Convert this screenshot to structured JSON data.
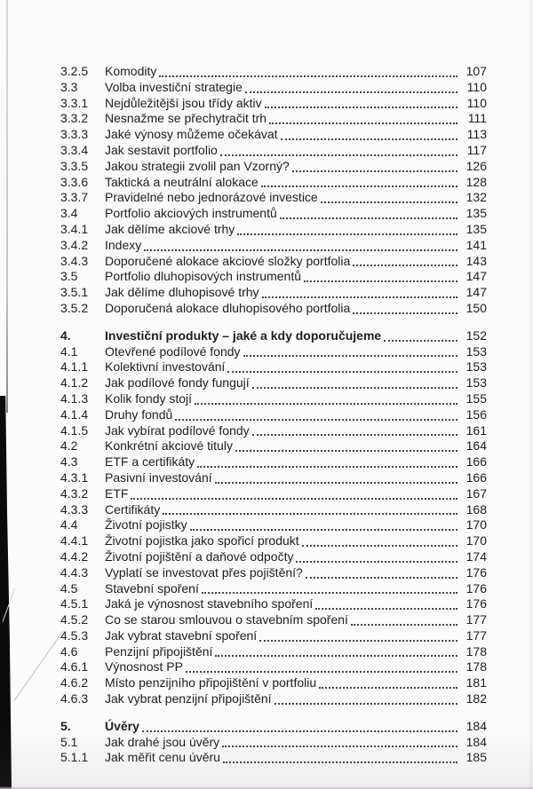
{
  "colors": {
    "ink": "#202020",
    "paper": "#fcfbfc",
    "scan_edge": "#0b0b0b"
  },
  "toc": {
    "entries": [
      {
        "num": "3.2.5",
        "title": "Komodity",
        "page": "107"
      },
      {
        "num": "3.3",
        "title": "Volba investiční strategie",
        "page": "110"
      },
      {
        "num": "3.3.1",
        "title": "Nejdůležitější jsou třídy aktiv",
        "page": "110"
      },
      {
        "num": "3.3.2",
        "title": "Nesnažme se přechytračit trh",
        "page": "111"
      },
      {
        "num": "3.3.3",
        "title": "Jaké výnosy můžeme očekávat",
        "page": "113"
      },
      {
        "num": "3.3.4",
        "title": "Jak sestavit portfolio",
        "page": "117"
      },
      {
        "num": "3.3.5",
        "title": "Jakou strategii zvolil pan Vzorný?",
        "page": "126"
      },
      {
        "num": "3.3.6",
        "title": "Taktická a neutrální alokace",
        "page": "128"
      },
      {
        "num": "3.3.7",
        "title": "Pravidelné nebo jednorázové investice",
        "page": "132"
      },
      {
        "num": "3.4",
        "title": "Portfolio akciových instrumentů",
        "page": "135"
      },
      {
        "num": "3.4.1",
        "title": "Jak dělíme akciové trhy",
        "page": "135"
      },
      {
        "num": "3.4.2",
        "title": "Indexy",
        "page": "141"
      },
      {
        "num": "3.4.3",
        "title": "Doporučené alokace akciové složky portfolia",
        "page": "143"
      },
      {
        "num": "3.5",
        "title": "Portfolio dluhopisových instrumentů",
        "page": "147"
      },
      {
        "num": "3.5.1",
        "title": "Jak dělíme dluhopisové trhy",
        "page": "147"
      },
      {
        "num": "3.5.2",
        "title": "Doporučená alokace dluhopisového portfolia",
        "page": "150"
      },
      {
        "num": "4.",
        "title": "Investiční produkty – jaké a kdy doporučujeme",
        "page": "152",
        "chapter": true,
        "section_break_before": true
      },
      {
        "num": "4.1",
        "title": "Otevřené podílové fondy",
        "page": "153"
      },
      {
        "num": "4.1.1",
        "title": "Kolektivní investování",
        "page": "153"
      },
      {
        "num": "4.1.2",
        "title": "Jak podílové fondy fungují",
        "page": "153"
      },
      {
        "num": "4.1.3",
        "title": "Kolik fondy stojí",
        "page": "155"
      },
      {
        "num": "4.1.4",
        "title": "Druhy fondů",
        "page": "156"
      },
      {
        "num": "4.1.5",
        "title": "Jak vybírat podílové fondy",
        "page": "161"
      },
      {
        "num": "4.2",
        "title": "Konkrétní akciové tituly",
        "page": "164"
      },
      {
        "num": "4.3",
        "title": "ETF a certifikáty",
        "page": "166"
      },
      {
        "num": "4.3.1",
        "title": "Pasivní investování",
        "page": "166"
      },
      {
        "num": "4.3.2",
        "title": "ETF",
        "page": "167"
      },
      {
        "num": "4.3.3",
        "title": "Certifikáty",
        "page": "168"
      },
      {
        "num": "4.4",
        "title": "Životní pojistky",
        "page": "170"
      },
      {
        "num": "4.4.1",
        "title": "Životní pojistka jako spořicí produkt",
        "page": "170"
      },
      {
        "num": "4.4.2",
        "title": "Životní pojištění a daňové odpočty",
        "page": "174"
      },
      {
        "num": "4.4.3",
        "title": "Vyplatí se investovat přes pojištění?",
        "page": "176"
      },
      {
        "num": "4.5",
        "title": "Stavební spoření",
        "page": "176"
      },
      {
        "num": "4.5.1",
        "title": "Jaká je výnosnost stavebního spoření",
        "page": "176"
      },
      {
        "num": "4.5.2",
        "title": "Co se starou smlouvou o stavebním spoření",
        "page": "177"
      },
      {
        "num": "4.5.3",
        "title": "Jak vybrat stavební spoření",
        "page": "177"
      },
      {
        "num": "4.6",
        "title": "Penzijní připojištění",
        "page": "178"
      },
      {
        "num": "4.6.1",
        "title": "Výnosnost PP",
        "page": "178"
      },
      {
        "num": "4.6.2",
        "title": "Místo penzijního připojištění v portfoliu",
        "page": "181"
      },
      {
        "num": "4.6.3",
        "title": "Jak vybrat penzijní připojištění",
        "page": "182"
      },
      {
        "num": "5.",
        "title": "Úvěry",
        "page": "184",
        "chapter": true,
        "section_break_before": true
      },
      {
        "num": "5.1",
        "title": "Jak drahé jsou úvěry",
        "page": "184"
      },
      {
        "num": "5.1.1",
        "title": "Jak měřit cenu úvěru",
        "page": "185"
      }
    ]
  }
}
